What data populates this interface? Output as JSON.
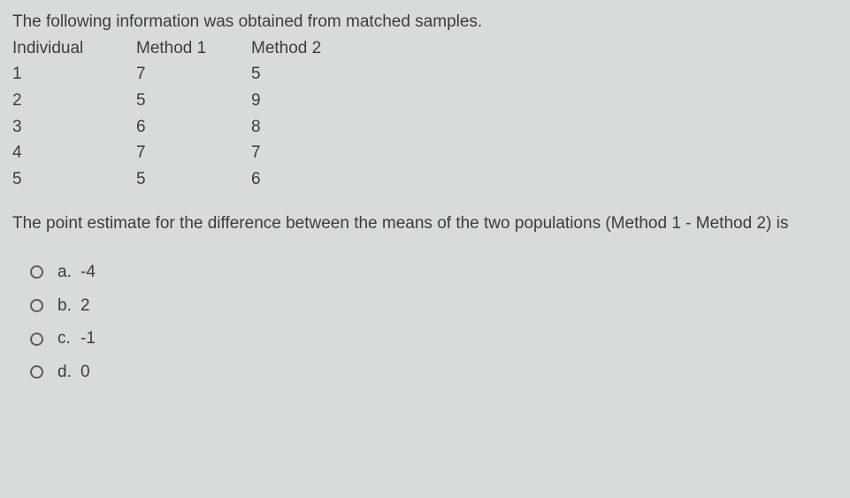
{
  "intro": "The following information was obtained from matched samples.",
  "table": {
    "headers": {
      "individual": "Individual",
      "method1": "Method 1",
      "method2": "Method 2"
    },
    "rows": [
      {
        "individual": "1",
        "method1": "7",
        "method2": "5"
      },
      {
        "individual": "2",
        "method1": "5",
        "method2": "9"
      },
      {
        "individual": "3",
        "method1": "6",
        "method2": "8"
      },
      {
        "individual": "4",
        "method1": "7",
        "method2": "7"
      },
      {
        "individual": "5",
        "method1": "5",
        "method2": "6"
      }
    ]
  },
  "question": "The point estimate for the difference between the means of the two populations (Method 1 - Method 2) is",
  "options": [
    {
      "letter": "a.",
      "value": "-4"
    },
    {
      "letter": "b.",
      "value": "2"
    },
    {
      "letter": "c.",
      "value": "-1"
    },
    {
      "letter": "d.",
      "value": "0"
    }
  ],
  "colors": {
    "background": "#d8dcd9",
    "text": "#3a3d3c",
    "radio_border": "#5a5d5c"
  },
  "typography": {
    "font_family": "Arial, Helvetica, sans-serif",
    "font_size_pt": 14
  }
}
